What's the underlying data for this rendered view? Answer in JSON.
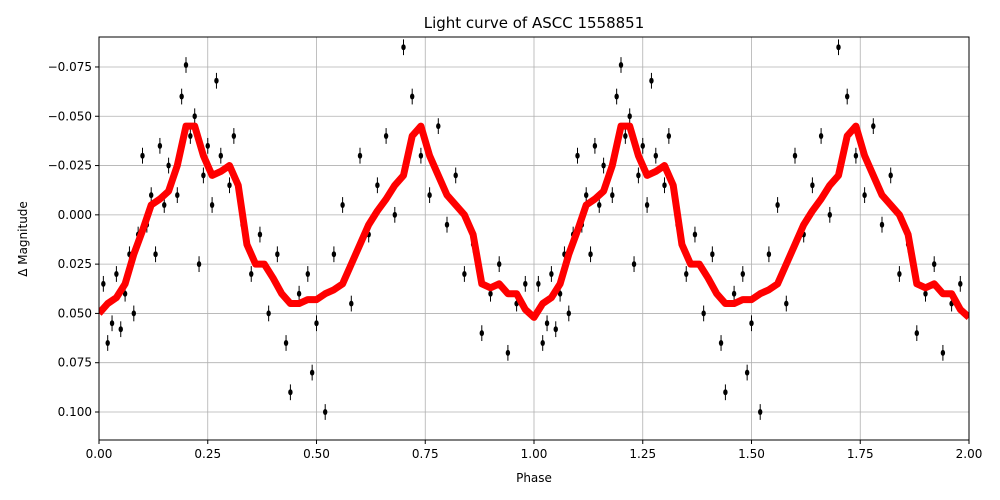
{
  "chart_data": {
    "type": "scatter",
    "title": "Light curve of ASCC 1558851",
    "xlabel": "Phase",
    "ylabel": "Δ Magnitude",
    "xlim": [
      0,
      2
    ],
    "ylim": [
      -0.0902,
      0.1142
    ],
    "y_inverted": true,
    "grid": true,
    "xticks": [
      {
        "value": 0,
        "label": "0.00"
      },
      {
        "value": 0.25,
        "label": "0.25"
      },
      {
        "value": 0.5,
        "label": "0.50"
      },
      {
        "value": 0.75,
        "label": "0.75"
      },
      {
        "value": 1,
        "label": "1.00"
      },
      {
        "value": 1.25,
        "label": "1.25"
      },
      {
        "value": 1.5,
        "label": "1.50"
      },
      {
        "value": 1.75,
        "label": "1.75"
      },
      {
        "value": 2,
        "label": "2.00"
      }
    ],
    "yticks": [
      {
        "value": -0.075,
        "label": "−0.075"
      },
      {
        "value": -0.05,
        "label": "−0.050"
      },
      {
        "value": -0.025,
        "label": "−0.025"
      },
      {
        "value": 0,
        "label": "0.000"
      },
      {
        "value": 0.025,
        "label": "0.025"
      },
      {
        "value": 0.05,
        "label": "0.050"
      },
      {
        "value": 0.075,
        "label": "0.075"
      },
      {
        "value": 0.1,
        "label": "0.100"
      }
    ],
    "series": [
      {
        "kind": "scatter",
        "color": "#000000",
        "yerr": 0.004,
        "x": [
          0.01,
          0.02,
          0.03,
          0.04,
          0.05,
          0.06,
          0.07,
          0.08,
          0.09,
          0.1,
          0.11,
          0.12,
          0.13,
          0.14,
          0.15,
          0.16,
          0.18,
          0.19,
          0.2,
          0.21,
          0.22,
          0.23,
          0.24,
          0.25,
          0.26,
          0.27,
          0.28,
          0.3,
          0.31,
          0.33,
          0.35,
          0.37,
          0.39,
          0.41,
          0.43,
          0.44,
          0.46,
          0.48,
          0.49,
          0.5,
          0.52,
          0.54,
          0.56,
          0.58,
          0.6,
          0.62,
          0.64,
          0.66,
          0.68,
          0.7,
          0.72,
          0.74,
          0.76,
          0.78,
          0.8,
          0.82,
          0.84,
          0.86,
          0.88,
          0.9,
          0.92,
          0.94,
          0.96,
          0.98,
          1.01,
          1.02,
          1.03,
          1.04,
          1.05,
          1.06,
          1.07,
          1.08,
          1.09,
          1.1,
          1.11,
          1.12,
          1.13,
          1.14,
          1.15,
          1.16,
          1.18,
          1.19,
          1.2,
          1.21,
          1.22,
          1.23,
          1.24,
          1.25,
          1.26,
          1.27,
          1.28,
          1.3,
          1.31,
          1.33,
          1.35,
          1.37,
          1.39,
          1.41,
          1.43,
          1.44,
          1.46,
          1.48,
          1.49,
          1.5,
          1.52,
          1.54,
          1.56,
          1.58,
          1.6,
          1.62,
          1.64,
          1.66,
          1.68,
          1.7,
          1.72,
          1.74,
          1.76,
          1.78,
          1.8,
          1.82,
          1.84,
          1.86,
          1.88,
          1.9,
          1.92,
          1.94,
          1.96,
          1.98
        ],
        "y": [
          0.035,
          0.065,
          0.055,
          0.03,
          0.058,
          0.04,
          0.02,
          0.05,
          0.01,
          -0.03,
          0.005,
          -0.01,
          0.02,
          -0.035,
          -0.005,
          -0.025,
          -0.01,
          -0.06,
          -0.076,
          -0.04,
          -0.05,
          0.025,
          -0.02,
          -0.035,
          -0.005,
          -0.068,
          -0.03,
          -0.015,
          -0.04,
          0.005,
          0.03,
          0.01,
          0.05,
          0.02,
          0.065,
          0.09,
          0.04,
          0.03,
          0.08,
          0.055,
          0.1,
          0.02,
          -0.005,
          0.045,
          -0.03,
          0.01,
          -0.015,
          -0.04,
          0.0,
          -0.085,
          -0.06,
          -0.03,
          -0.01,
          -0.045,
          0.005,
          -0.02,
          0.03,
          0.015,
          0.06,
          0.04,
          0.025,
          0.07,
          0.045,
          0.035,
          0.035,
          0.065,
          0.055,
          0.03,
          0.058,
          0.04,
          0.02,
          0.05,
          0.01,
          -0.03,
          0.005,
          -0.01,
          0.02,
          -0.035,
          -0.005,
          -0.025,
          -0.01,
          -0.06,
          -0.076,
          -0.04,
          -0.05,
          0.025,
          -0.02,
          -0.035,
          -0.005,
          -0.068,
          -0.03,
          -0.015,
          -0.04,
          0.005,
          0.03,
          0.01,
          0.05,
          0.02,
          0.065,
          0.09,
          0.04,
          0.03,
          0.08,
          0.055,
          0.1,
          0.02,
          -0.005,
          0.045,
          -0.03,
          0.01,
          -0.015,
          -0.04,
          0.0,
          -0.085,
          -0.06,
          -0.03,
          -0.01,
          -0.045,
          0.005,
          -0.02,
          0.03,
          0.015,
          0.06,
          0.04,
          0.025,
          0.07,
          0.045,
          0.035
        ]
      },
      {
        "kind": "line",
        "color": "#ff0000",
        "x": [
          0,
          0.02,
          0.04,
          0.06,
          0.08,
          0.1,
          0.12,
          0.14,
          0.16,
          0.18,
          0.2,
          0.22,
          0.24,
          0.26,
          0.28,
          0.3,
          0.32,
          0.34,
          0.36,
          0.38,
          0.4,
          0.42,
          0.44,
          0.46,
          0.48,
          0.5,
          0.52,
          0.54,
          0.56,
          0.58,
          0.6,
          0.62,
          0.64,
          0.66,
          0.68,
          0.7,
          0.72,
          0.74,
          0.76,
          0.78,
          0.8,
          0.82,
          0.84,
          0.86,
          0.88,
          0.9,
          0.92,
          0.94,
          0.96,
          0.98,
          1.0,
          1.02,
          1.04,
          1.06,
          1.08,
          1.1,
          1.12,
          1.14,
          1.16,
          1.18,
          1.2,
          1.22,
          1.24,
          1.26,
          1.28,
          1.3,
          1.32,
          1.34,
          1.36,
          1.38,
          1.4,
          1.42,
          1.44,
          1.46,
          1.48,
          1.5,
          1.52,
          1.54,
          1.56,
          1.58,
          1.6,
          1.62,
          1.64,
          1.66,
          1.68,
          1.7,
          1.72,
          1.74,
          1.76,
          1.78,
          1.8,
          1.82,
          1.84,
          1.86,
          1.88,
          1.9,
          1.92,
          1.94,
          1.96,
          1.98,
          2.0
        ],
        "y": [
          0.05,
          0.045,
          0.042,
          0.035,
          0.02,
          0.008,
          -0.005,
          -0.008,
          -0.012,
          -0.025,
          -0.045,
          -0.045,
          -0.03,
          -0.02,
          -0.022,
          -0.025,
          -0.015,
          0.015,
          0.025,
          0.025,
          0.032,
          0.04,
          0.045,
          0.045,
          0.043,
          0.043,
          0.04,
          0.038,
          0.035,
          0.025,
          0.015,
          0.005,
          -0.002,
          -0.008,
          -0.015,
          -0.02,
          -0.04,
          -0.045,
          -0.03,
          -0.02,
          -0.01,
          -0.005,
          0.0,
          0.01,
          0.035,
          0.037,
          0.035,
          0.04,
          0.04,
          0.048,
          0.052,
          0.045,
          0.042,
          0.035,
          0.02,
          0.008,
          -0.005,
          -0.008,
          -0.012,
          -0.025,
          -0.045,
          -0.045,
          -0.03,
          -0.02,
          -0.022,
          -0.025,
          -0.015,
          0.015,
          0.025,
          0.025,
          0.032,
          0.04,
          0.045,
          0.045,
          0.043,
          0.043,
          0.04,
          0.038,
          0.035,
          0.025,
          0.015,
          0.005,
          -0.002,
          -0.008,
          -0.015,
          -0.02,
          -0.04,
          -0.045,
          -0.03,
          -0.02,
          -0.01,
          -0.005,
          0.0,
          0.01,
          0.035,
          0.037,
          0.035,
          0.04,
          0.04,
          0.048,
          0.052
        ]
      }
    ]
  }
}
